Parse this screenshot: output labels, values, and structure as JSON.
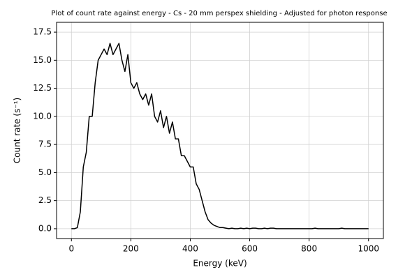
{
  "chart_data": {
    "type": "line",
    "title": "Plot of count rate against energy - Cs - 20 mm perspex shielding - Adjusted for photon response",
    "x_label": "Energy (keV)",
    "y_label": "Count rate (s⁻¹)",
    "x": [
      0,
      10,
      20,
      30,
      40,
      50,
      60,
      70,
      80,
      90,
      100,
      110,
      120,
      130,
      140,
      150,
      160,
      170,
      180,
      190,
      200,
      210,
      220,
      230,
      240,
      250,
      260,
      270,
      280,
      290,
      300,
      310,
      320,
      330,
      340,
      350,
      360,
      370,
      380,
      390,
      400,
      410,
      420,
      430,
      440,
      450,
      460,
      470,
      480,
      490,
      500,
      510,
      520,
      530,
      540,
      550,
      560,
      570,
      580,
      590,
      600,
      610,
      620,
      630,
      640,
      650,
      660,
      670,
      680,
      690,
      700,
      710,
      720,
      730,
      740,
      750,
      760,
      770,
      780,
      790,
      800,
      810,
      820,
      830,
      840,
      850,
      860,
      870,
      880,
      890,
      900,
      910,
      920,
      930,
      940,
      950,
      960,
      970,
      980,
      990,
      1000
    ],
    "series": [
      {
        "name": "Count rate",
        "color": "#000000",
        "values": [
          0,
          0,
          0.1,
          1.5,
          5.5,
          6.8,
          10,
          10,
          13,
          15,
          15.5,
          16,
          15.5,
          16.5,
          15.5,
          16,
          16.5,
          15,
          14,
          15.5,
          13,
          12.5,
          13,
          12,
          11.5,
          12,
          11,
          12,
          10,
          9.5,
          10.5,
          9,
          10,
          8.5,
          9.5,
          8,
          8,
          6.5,
          6.5,
          6,
          5.5,
          5.5,
          4,
          3.5,
          2.5,
          1.5,
          0.8,
          0.5,
          0.3,
          0.2,
          0.1,
          0.1,
          0.05,
          0,
          0.05,
          0,
          0,
          0.05,
          0,
          0.05,
          0,
          0.05,
          0.05,
          0,
          0,
          0.05,
          0,
          0.05,
          0.05,
          0,
          0,
          0,
          0,
          0,
          0,
          0,
          0,
          0,
          0,
          0,
          0,
          0,
          0.05,
          0,
          0,
          0,
          0,
          0,
          0,
          0,
          0,
          0.05,
          0,
          0,
          0,
          0,
          0,
          0,
          0,
          0,
          0
        ]
      }
    ],
    "xlim": [
      -50,
      1050
    ],
    "xticks": [
      0,
      200,
      400,
      600,
      800,
      1000
    ],
    "ylim": [
      -0.875,
      18.375
    ],
    "yticks": [
      {
        "value": 0,
        "label": "0.0"
      },
      2.5,
      {
        "value": 5,
        "label": "5.0"
      },
      7.5,
      {
        "value": 10,
        "label": "10.0"
      },
      12.5,
      {
        "value": 15,
        "label": "15.0"
      },
      17.5
    ],
    "grid": true
  }
}
